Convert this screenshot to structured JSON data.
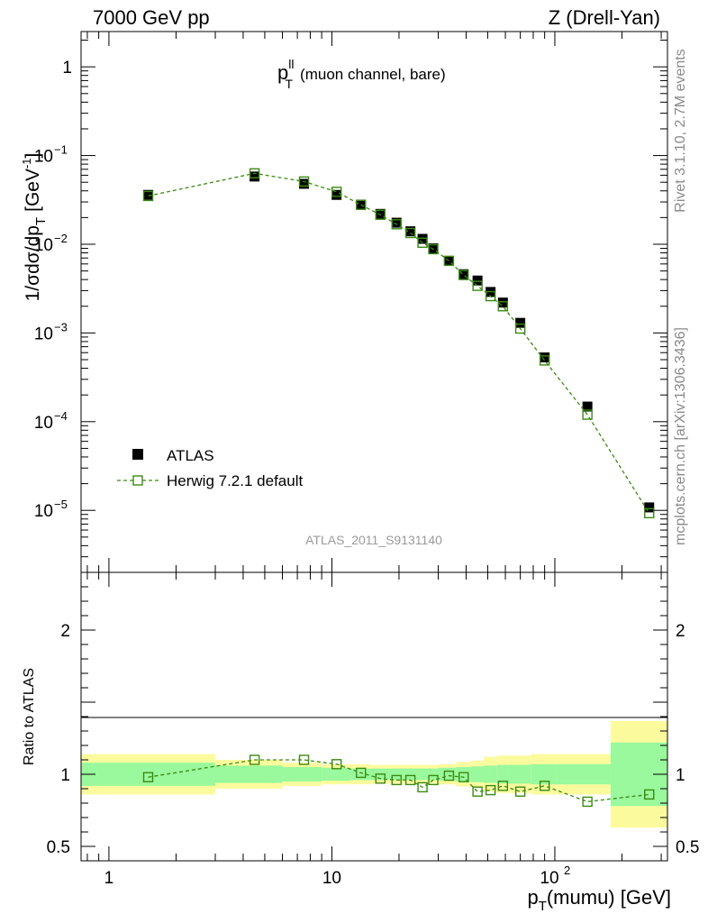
{
  "header": {
    "left": "7000 GeV pp",
    "right": "Z (Drell-Yan)"
  },
  "plot_title": {
    "main": "p",
    "sup": "ll",
    "sub": "T",
    "rest": "(muon channel, bare)"
  },
  "analysis_id": "ATLAS_2011_S9131140",
  "side_text": {
    "rivet": "Rivet 3.1.10,  2.7M events",
    "mcplots": "mcplots.cern.ch [arXiv:1306.3436]"
  },
  "legend": {
    "data": "ATLAS",
    "mc": "Herwig 7.2.1 default"
  },
  "axes": {
    "ylabel_main": "1/σdσ/dp",
    "ylabel_main_sub": "T",
    "ylabel_main_unit": "[GeV",
    "ylabel_main_unit_sup": "-1",
    "ylabel_main_unit_close": "]",
    "ylabel_ratio": "Ratio to ATLAS",
    "xlabel_main": "p",
    "xlabel_sub": "T",
    "xlabel_rest": "(mumu) [GeV]",
    "xticks": [
      "1",
      "10"
    ],
    "xtick_100_base": "10",
    "xtick_100_exp": "2",
    "yticks_main": [
      {
        "base": "1",
        "exp": ""
      },
      {
        "base": "10",
        "exp": "−1"
      },
      {
        "base": "10",
        "exp": "−2"
      },
      {
        "base": "10",
        "exp": "−3"
      },
      {
        "base": "10",
        "exp": "−4"
      },
      {
        "base": "10",
        "exp": "−5"
      }
    ],
    "yticks_ratio": [
      "2",
      "1",
      "0.5"
    ]
  },
  "colors": {
    "mc": "#3a8a12",
    "band_inner": "#99f99c",
    "band_outer": "#fbfb9e",
    "data": "#000000"
  },
  "chart_data": [
    {
      "type": "scatter",
      "panel": "main",
      "xscale": "log",
      "yscale": "log",
      "xlim": [
        0.75,
        320
      ],
      "ylim": [
        2e-06,
        2.5
      ],
      "series": [
        {
          "name": "ATLAS",
          "x": [
            1.5,
            4.5,
            7.5,
            10.5,
            13.5,
            16.5,
            19.5,
            22.5,
            25.5,
            28.5,
            33.5,
            39,
            45,
            51.5,
            58.5,
            70,
            90,
            140,
            265
          ],
          "values": [
            0.036,
            0.058,
            0.048,
            0.036,
            0.028,
            0.022,
            0.0175,
            0.014,
            0.0115,
            0.009,
            0.0065,
            0.0046,
            0.0039,
            0.0029,
            0.0022,
            0.0013,
            0.00053,
            0.000148,
            1.08e-05
          ]
        },
        {
          "name": "Herwig 7.2.1 default",
          "x": [
            1.5,
            4.5,
            7.5,
            10.5,
            13.5,
            16.5,
            19.5,
            22.5,
            25.5,
            28.5,
            33.5,
            39,
            45,
            51.5,
            58.5,
            70,
            90,
            140,
            265
          ],
          "values": [
            0.035,
            0.063,
            0.051,
            0.039,
            0.0278,
            0.0215,
            0.0168,
            0.0134,
            0.0104,
            0.0088,
            0.0065,
            0.0045,
            0.0034,
            0.0026,
            0.002,
            0.00112,
            0.00049,
            0.00012,
            9.3e-06
          ]
        }
      ]
    },
    {
      "type": "line",
      "panel": "ratio",
      "xscale": "log",
      "xlim": [
        0.75,
        320
      ],
      "ylim": [
        0.4,
        2.4
      ],
      "ylabel": "Ratio to ATLAS",
      "series": [
        {
          "name": "Herwig 7.2.1 default",
          "x": [
            1.5,
            4.5,
            7.5,
            10.5,
            13.5,
            16.5,
            19.5,
            22.5,
            25.5,
            28.5,
            33.5,
            39,
            45,
            51.5,
            58.5,
            70,
            90,
            140,
            265
          ],
          "values": [
            0.98,
            1.1,
            1.1,
            1.07,
            1.01,
            0.97,
            0.96,
            0.96,
            0.91,
            0.96,
            0.99,
            0.98,
            0.88,
            0.89,
            0.92,
            0.88,
            0.92,
            0.81,
            0.86
          ]
        }
      ],
      "bands": {
        "edges": [
          0.75,
          3,
          6,
          9,
          12,
          15,
          18,
          21,
          24,
          27,
          30,
          36,
          42,
          48,
          55,
          62,
          78,
          102,
          178,
          320
        ],
        "inner": [
          0.08,
          0.06,
          0.05,
          0.045,
          0.04,
          0.04,
          0.04,
          0.04,
          0.04,
          0.04,
          0.045,
          0.05,
          0.055,
          0.06,
          0.065,
          0.065,
          0.07,
          0.07,
          0.22
        ],
        "outer": [
          0.14,
          0.1,
          0.08,
          0.07,
          0.07,
          0.065,
          0.065,
          0.065,
          0.065,
          0.065,
          0.07,
          0.085,
          0.095,
          0.12,
          0.13,
          0.13,
          0.14,
          0.14,
          0.37
        ]
      }
    }
  ]
}
